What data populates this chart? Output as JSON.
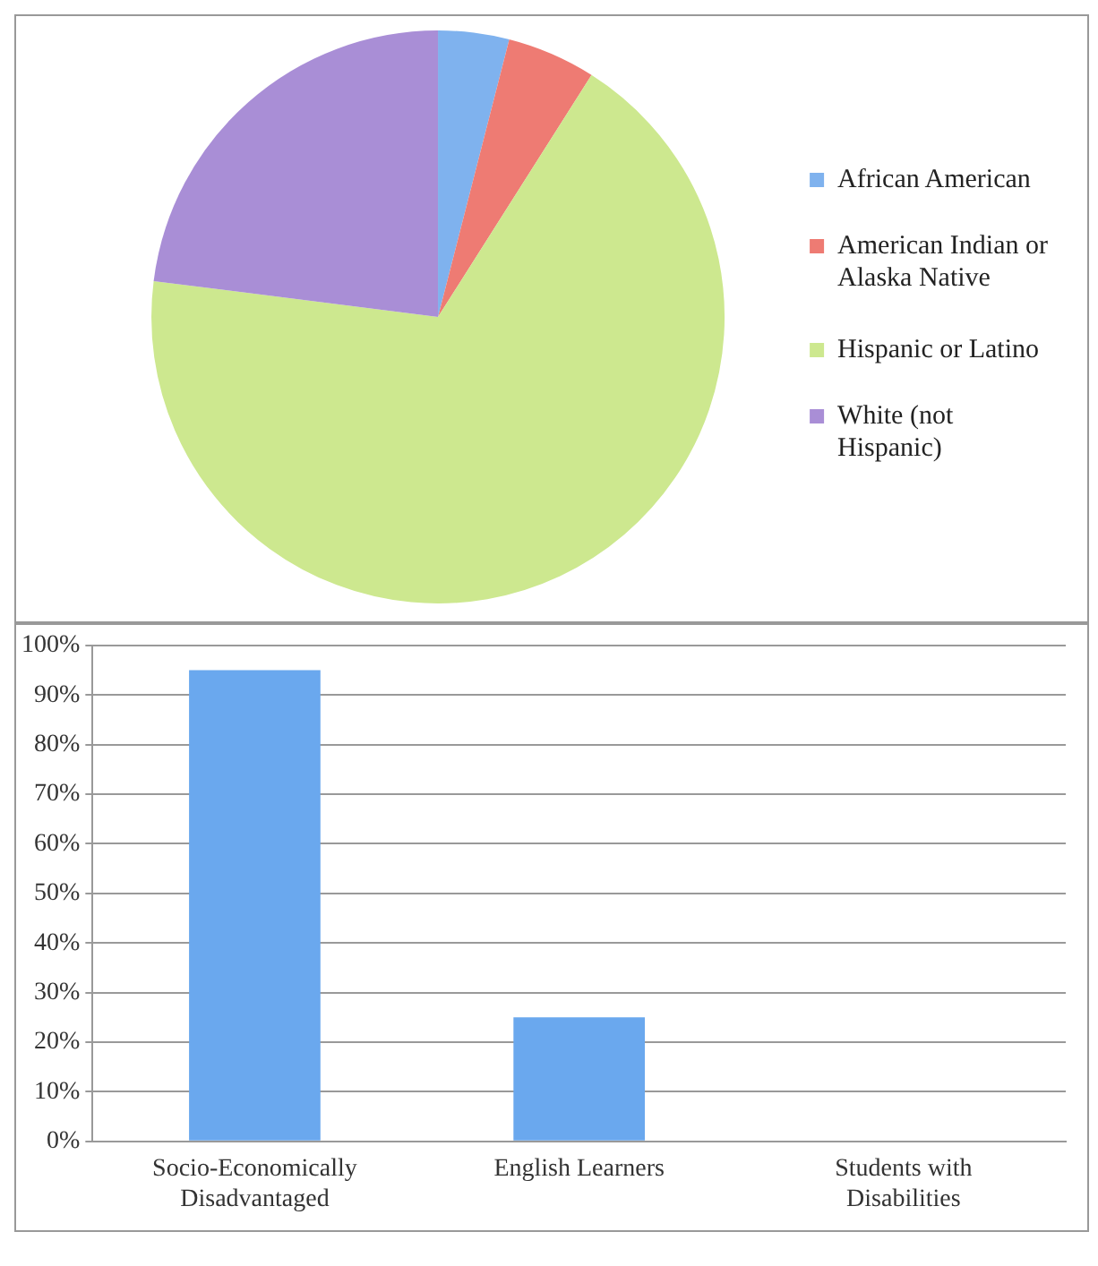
{
  "chart_data": [
    {
      "type": "pie",
      "categories": [
        "African American",
        "American Indian or Alaska Native",
        "Hispanic or Latino",
        "White (not Hispanic)"
      ],
      "values": [
        4,
        5,
        68,
        23
      ],
      "colors": [
        "#7fb2ee",
        "#ee7b73",
        "#cde88f",
        "#a98ed6"
      ],
      "legend": "right"
    },
    {
      "type": "bar",
      "categories": [
        "Socio-Economically Disadvantaged",
        "English Learners",
        "Students with Disabilities"
      ],
      "values": [
        95,
        25,
        0
      ],
      "color": "#6aa8ee",
      "ylim": [
        0,
        100
      ],
      "yticks": [
        {
          "value": 0,
          "label": "0%"
        },
        {
          "value": 10,
          "label": "10%"
        },
        {
          "value": 20,
          "label": "20%"
        },
        {
          "value": 30,
          "label": "30%"
        },
        {
          "value": 40,
          "label": "40%"
        },
        {
          "value": 50,
          "label": "50%"
        },
        {
          "value": 60,
          "label": "60%"
        },
        {
          "value": 70,
          "label": "70%"
        },
        {
          "value": 80,
          "label": "80%"
        },
        {
          "value": 90,
          "label": "90%"
        },
        {
          "value": 100,
          "label": "100%"
        }
      ],
      "grid": "y",
      "legend": false
    }
  ]
}
